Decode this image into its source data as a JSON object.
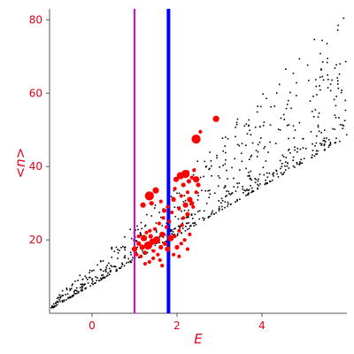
{
  "chart_data": {
    "type": "scatter",
    "xlabel": "E",
    "ylabel": "<n>",
    "xlim": [
      -1,
      6
    ],
    "ylim": [
      0,
      83
    ],
    "x_ticks": [
      0,
      2,
      4
    ],
    "y_ticks": [
      20,
      40,
      60,
      80
    ],
    "x_tick_labels": [
      "0",
      "2",
      "4"
    ],
    "y_tick_labels": [
      "20",
      "40",
      "60",
      "80"
    ],
    "vertical_lines": [
      {
        "x": 1.0,
        "color": "#e000e0",
        "width": "thin"
      },
      {
        "x": 1.8,
        "color": "#0000ff",
        "width": "thick"
      }
    ],
    "series": [
      {
        "color": "#000000",
        "marker": "small-dot",
        "band": {
          "x_range": [
            -1.0,
            6.0
          ],
          "lower": {
            "x": [
              -1.0,
              6.0
            ],
            "y": [
              1.0,
              48.0
            ]
          },
          "upper": {
            "x": [
              -1.0,
              1.0,
              6.0
            ],
            "y": [
              3.0,
              24.0,
              84.0
            ]
          },
          "density_note": "dense near lower edge, sparse near upper edge"
        }
      },
      {
        "color": "#ff0000",
        "marker": "filled-circle",
        "size_note": "marker size varies",
        "points": [
          [
            1.0,
            17.5
          ],
          [
            1.05,
            16.0
          ],
          [
            1.1,
            19.0
          ],
          [
            1.15,
            15.5
          ],
          [
            1.18,
            18.0
          ],
          [
            1.22,
            20.5
          ],
          [
            1.25,
            16.5
          ],
          [
            1.28,
            22.0
          ],
          [
            1.32,
            18.5
          ],
          [
            1.35,
            14.0
          ],
          [
            1.38,
            21.0
          ],
          [
            1.42,
            19.5
          ],
          [
            1.45,
            17.0
          ],
          [
            1.48,
            23.0
          ],
          [
            1.52,
            20.0
          ],
          [
            1.55,
            16.0
          ],
          [
            1.58,
            24.5
          ],
          [
            1.62,
            18.0
          ],
          [
            1.65,
            21.5
          ],
          [
            1.68,
            26.0
          ],
          [
            1.72,
            19.0
          ],
          [
            1.75,
            23.5
          ],
          [
            1.78,
            17.5
          ],
          [
            1.82,
            25.0
          ],
          [
            1.85,
            20.5
          ],
          [
            1.3,
            18.0
          ],
          [
            1.36,
            22.5
          ],
          [
            1.44,
            15.0
          ],
          [
            1.6,
            14.5
          ],
          [
            1.7,
            28.0
          ],
          [
            1.2,
            29.5
          ],
          [
            1.35,
            32.0
          ],
          [
            1.5,
            33.5
          ],
          [
            1.4,
            30.0
          ],
          [
            1.62,
            30.5
          ],
          [
            1.78,
            29.0
          ],
          [
            1.92,
            31.0
          ],
          [
            2.05,
            28.5
          ],
          [
            2.2,
            29.5
          ],
          [
            2.35,
            30.0
          ],
          [
            2.1,
            32.0
          ],
          [
            2.25,
            33.0
          ],
          [
            2.15,
            35.0
          ],
          [
            1.95,
            34.0
          ],
          [
            1.98,
            36.5
          ],
          [
            2.08,
            37.5
          ],
          [
            2.2,
            38.0
          ],
          [
            2.28,
            36.0
          ],
          [
            2.35,
            37.0
          ],
          [
            2.45,
            36.5
          ],
          [
            2.4,
            39.0
          ],
          [
            2.25,
            38.5
          ],
          [
            2.5,
            35.0
          ],
          [
            2.12,
            24.0
          ],
          [
            2.05,
            22.5
          ],
          [
            1.95,
            21.0
          ],
          [
            2.18,
            20.0
          ],
          [
            2.1,
            19.0
          ],
          [
            2.0,
            18.0
          ],
          [
            2.3,
            21.5
          ],
          [
            2.25,
            27.0
          ],
          [
            2.38,
            29.0
          ],
          [
            2.15,
            26.0
          ],
          [
            1.88,
            27.5
          ],
          [
            2.45,
            33.0
          ],
          [
            2.45,
            47.5
          ],
          [
            2.55,
            49.5
          ],
          [
            2.92,
            53.0
          ],
          [
            2.3,
            31.0
          ],
          [
            1.1,
            21.0
          ],
          [
            1.92,
            16.0
          ],
          [
            2.05,
            15.5
          ],
          [
            2.25,
            17.5
          ],
          [
            1.65,
            13.0
          ],
          [
            1.25,
            13.5
          ]
        ],
        "sizes": [
          5,
          3,
          4,
          3,
          5,
          6,
          3,
          3,
          8,
          3,
          4,
          6,
          3,
          3,
          7,
          3,
          3,
          4,
          5,
          3,
          4,
          3,
          5,
          3,
          6,
          4,
          3,
          3,
          3,
          4,
          5,
          9,
          6,
          4,
          3,
          3,
          4,
          3,
          5,
          4,
          3,
          3,
          4,
          3,
          5,
          7,
          8,
          4,
          3,
          6,
          3,
          3,
          4,
          3,
          3,
          3,
          3,
          3,
          4,
          3,
          4,
          3,
          3,
          3,
          3,
          9,
          3,
          6,
          5,
          3,
          3,
          3,
          3,
          3,
          3
        ]
      }
    ]
  }
}
